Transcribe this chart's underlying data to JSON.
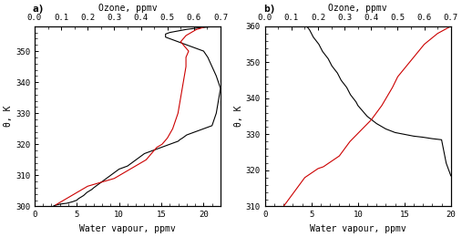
{
  "panel_a": {
    "label": "a)",
    "wv_x": [
      2.2,
      2.3,
      2.5,
      2.8,
      3.2,
      3.8,
      4.5,
      5.0,
      5.2,
      5.5,
      5.8,
      6.0,
      6.2,
      6.5,
      6.8,
      7.0,
      7.5,
      8.0,
      8.5,
      9.0,
      9.5,
      10.0,
      10.5,
      11.0,
      11.5,
      12.0,
      12.5,
      13.0,
      14.0,
      15.0,
      16.0,
      17.0,
      17.2,
      17.5,
      18.0,
      18.5,
      19.0,
      19.5,
      20.0,
      20.5,
      21.0,
      21.5,
      22.0,
      21.5,
      21.0,
      20.5,
      20.0,
      19.0,
      18.5,
      18.0,
      17.5,
      17.0,
      16.5,
      16.0,
      15.5,
      15.5,
      15.5,
      16.0,
      17.0,
      18.0,
      19.5,
      21.5
    ],
    "wv_y": [
      300.0,
      300.2,
      300.4,
      300.6,
      300.8,
      301.0,
      301.5,
      302.0,
      302.5,
      303.0,
      303.5,
      304.0,
      304.5,
      305.0,
      305.5,
      306.0,
      307.0,
      308.0,
      309.0,
      310.0,
      311.0,
      312.0,
      312.5,
      313.0,
      314.0,
      315.0,
      316.0,
      317.0,
      318.0,
      319.0,
      320.0,
      321.0,
      321.5,
      322.0,
      323.0,
      323.5,
      324.0,
      324.5,
      325.0,
      325.5,
      326.0,
      330.0,
      338.0,
      342.0,
      345.0,
      348.0,
      350.0,
      351.0,
      351.5,
      352.0,
      352.5,
      353.0,
      353.5,
      354.0,
      354.5,
      355.0,
      355.5,
      356.0,
      356.5,
      357.0,
      357.5,
      358.0
    ],
    "oz_x": [
      0.08,
      0.09,
      0.1,
      0.11,
      0.12,
      0.13,
      0.14,
      0.15,
      0.16,
      0.17,
      0.18,
      0.19,
      0.2,
      0.22,
      0.24,
      0.26,
      0.28,
      0.3,
      0.31,
      0.32,
      0.33,
      0.34,
      0.35,
      0.36,
      0.37,
      0.38,
      0.39,
      0.4,
      0.41,
      0.42,
      0.43,
      0.44,
      0.45,
      0.46,
      0.48,
      0.5,
      0.52,
      0.54,
      0.55,
      0.56,
      0.57,
      0.57,
      0.58,
      0.57,
      0.56,
      0.55,
      0.56,
      0.57,
      0.58,
      0.59,
      0.6,
      0.61,
      0.62,
      0.63,
      0.64,
      0.65
    ],
    "oz_y": [
      300.5,
      301.0,
      301.5,
      302.0,
      302.5,
      303.0,
      303.5,
      304.0,
      304.5,
      305.0,
      305.5,
      306.0,
      306.5,
      307.0,
      307.5,
      308.0,
      308.5,
      309.0,
      309.5,
      310.0,
      310.5,
      311.0,
      311.5,
      312.0,
      312.5,
      313.0,
      313.5,
      314.0,
      314.5,
      315.0,
      316.0,
      317.0,
      318.0,
      319.0,
      320.0,
      322.0,
      325.0,
      330.0,
      335.0,
      340.0,
      345.0,
      348.0,
      350.0,
      351.0,
      352.0,
      353.0,
      354.0,
      355.0,
      355.5,
      356.0,
      356.5,
      357.0,
      357.2,
      357.5,
      357.8,
      358.0
    ],
    "xlim_wv": [
      0,
      22
    ],
    "ylim": [
      300,
      358
    ],
    "xticks_wv": [
      0,
      5,
      10,
      15,
      20
    ],
    "yticks": [
      300,
      310,
      320,
      330,
      340,
      350
    ],
    "xlim_oz": [
      0.0,
      0.7
    ],
    "xticks_oz": [
      0.0,
      0.1,
      0.2,
      0.3,
      0.4,
      0.5,
      0.6,
      0.7
    ],
    "xlabel": "Water vapour, ppmv",
    "xlabel_oz": "Ozone, ppmv",
    "ylabel": "θ, K"
  },
  "panel_b": {
    "label": "b)",
    "wv_x": [
      4.5,
      4.8,
      5.0,
      5.2,
      5.5,
      5.8,
      6.0,
      6.2,
      6.5,
      6.8,
      7.0,
      7.2,
      7.5,
      7.8,
      8.0,
      8.2,
      8.5,
      8.8,
      9.0,
      9.2,
      9.5,
      9.8,
      10.0,
      10.5,
      11.0,
      12.0,
      13.0,
      14.0,
      15.0,
      16.0,
      17.0,
      18.0,
      19.0,
      19.5,
      20.0
    ],
    "wv_y": [
      360.0,
      359.0,
      358.0,
      357.0,
      356.0,
      355.0,
      354.0,
      353.0,
      352.0,
      351.0,
      350.0,
      349.0,
      348.0,
      347.0,
      346.0,
      345.0,
      344.0,
      343.0,
      342.0,
      341.0,
      340.0,
      339.0,
      338.0,
      336.5,
      335.0,
      333.0,
      331.5,
      330.5,
      330.0,
      329.5,
      329.2,
      328.8,
      328.5,
      322.0,
      318.5
    ],
    "oz_x": [
      0.07,
      0.08,
      0.09,
      0.1,
      0.11,
      0.12,
      0.13,
      0.14,
      0.15,
      0.16,
      0.17,
      0.18,
      0.19,
      0.2,
      0.22,
      0.24,
      0.26,
      0.28,
      0.29,
      0.3,
      0.31,
      0.32,
      0.34,
      0.36,
      0.38,
      0.4,
      0.42,
      0.44,
      0.46,
      0.48,
      0.5,
      0.55,
      0.6,
      0.65,
      0.7
    ],
    "oz_y": [
      310.0,
      311.0,
      312.0,
      313.0,
      314.0,
      315.0,
      316.0,
      317.0,
      318.0,
      318.5,
      319.0,
      319.5,
      320.0,
      320.5,
      321.0,
      322.0,
      323.0,
      324.0,
      325.0,
      326.0,
      327.0,
      328.0,
      329.5,
      331.0,
      332.5,
      334.0,
      336.0,
      338.0,
      340.5,
      343.0,
      346.0,
      350.5,
      355.0,
      358.0,
      360.0
    ],
    "xlim_wv": [
      0,
      20
    ],
    "ylim": [
      310,
      360
    ],
    "xticks_wv": [
      0,
      5,
      10,
      15,
      20
    ],
    "yticks": [
      310,
      320,
      330,
      340,
      350,
      360
    ],
    "xlim_oz": [
      0.0,
      0.7
    ],
    "xticks_oz": [
      0.0,
      0.1,
      0.2,
      0.3,
      0.4,
      0.5,
      0.6,
      0.7
    ],
    "xlabel": "Water vapour, ppmv",
    "xlabel_oz": "Ozone, ppmv",
    "ylabel": "θ, K"
  },
  "wv_color": "#000000",
  "oz_color": "#cc0000",
  "linewidth": 0.8,
  "bg_color": "#ffffff",
  "font_family": "DejaVu Sans Mono"
}
